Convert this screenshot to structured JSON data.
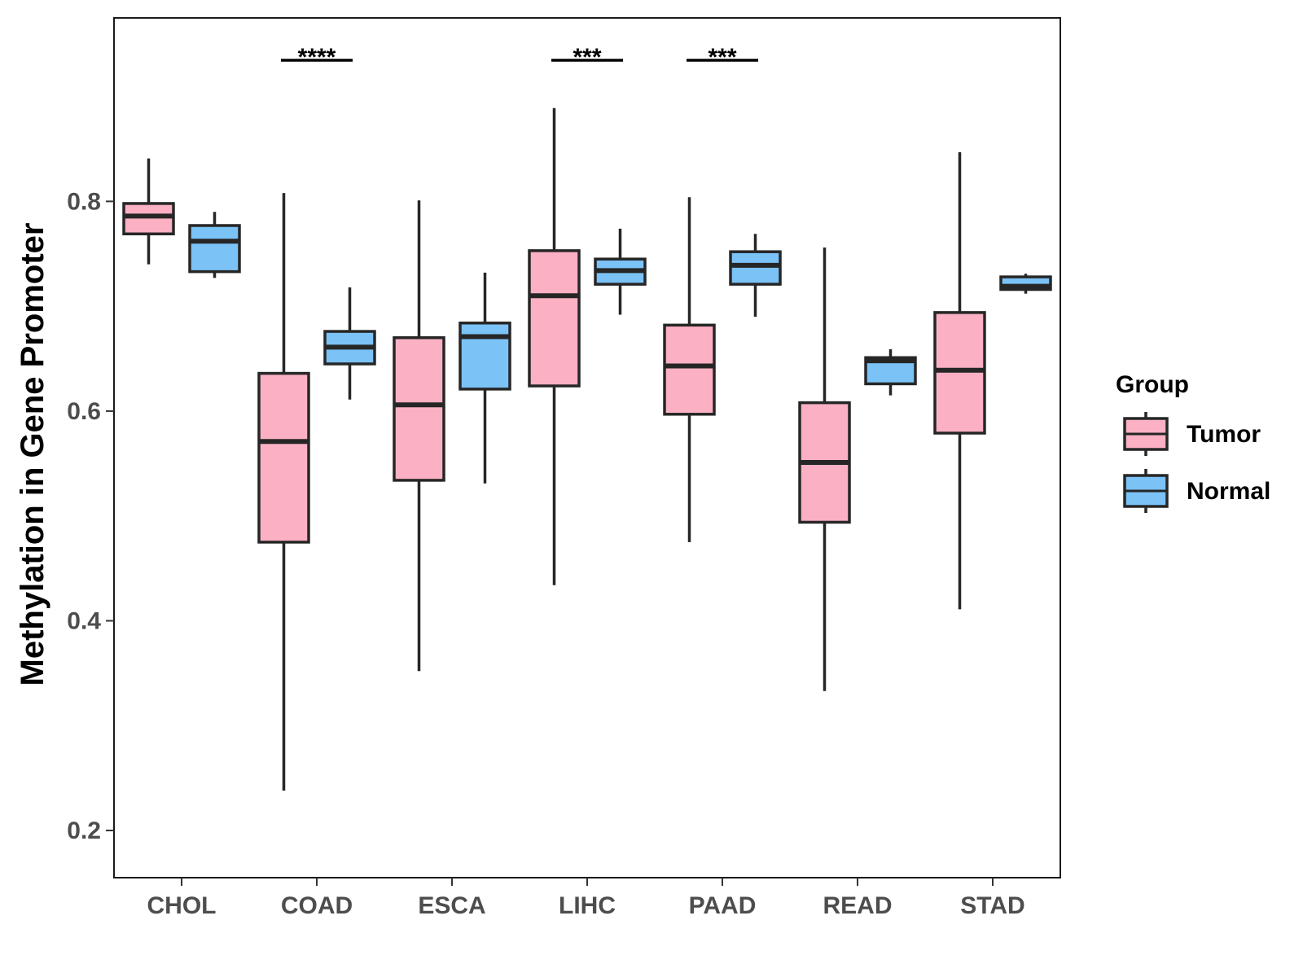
{
  "chart_data": {
    "type": "boxplot",
    "title": "",
    "xlabel": "",
    "ylabel": "Methylation in Gene Promoter",
    "ylim": [
      0.155,
      0.975
    ],
    "yticks": [
      0.2,
      0.4,
      0.6,
      0.8
    ],
    "ytick_labels": [
      "0.2",
      "0.4",
      "0.6",
      "0.8"
    ],
    "categories": [
      "CHOL",
      "COAD",
      "ESCA",
      "LIHC",
      "PAAD",
      "READ",
      "STAD"
    ],
    "legend": {
      "title": "Group",
      "position": "right",
      "entries": [
        {
          "name": "Tumor",
          "color": "#FBB1C3"
        },
        {
          "name": "Normal",
          "color": "#7BC2F7"
        }
      ]
    },
    "series": [
      {
        "name": "Tumor",
        "color": "#FBB1C3",
        "boxes": [
          {
            "category": "CHOL",
            "min": 0.74,
            "q1": 0.769,
            "median": 0.786,
            "q3": 0.798,
            "max": 0.841
          },
          {
            "category": "COAD",
            "min": 0.238,
            "q1": 0.475,
            "median": 0.571,
            "q3": 0.636,
            "max": 0.808
          },
          {
            "category": "ESCA",
            "min": 0.352,
            "q1": 0.534,
            "median": 0.606,
            "q3": 0.67,
            "max": 0.801
          },
          {
            "category": "LIHC",
            "min": 0.434,
            "q1": 0.624,
            "median": 0.71,
            "q3": 0.753,
            "max": 0.889
          },
          {
            "category": "PAAD",
            "min": 0.475,
            "q1": 0.597,
            "median": 0.643,
            "q3": 0.682,
            "max": 0.804
          },
          {
            "category": "READ",
            "min": 0.333,
            "q1": 0.494,
            "median": 0.551,
            "q3": 0.608,
            "max": 0.756
          },
          {
            "category": "STAD",
            "min": 0.411,
            "q1": 0.579,
            "median": 0.639,
            "q3": 0.694,
            "max": 0.847
          }
        ]
      },
      {
        "name": "Normal",
        "color": "#7BC2F7",
        "boxes": [
          {
            "category": "CHOL",
            "min": 0.727,
            "q1": 0.733,
            "median": 0.762,
            "q3": 0.777,
            "max": 0.79
          },
          {
            "category": "COAD",
            "min": 0.611,
            "q1": 0.645,
            "median": 0.661,
            "q3": 0.676,
            "max": 0.718
          },
          {
            "category": "ESCA",
            "min": 0.531,
            "q1": 0.621,
            "median": 0.671,
            "q3": 0.684,
            "max": 0.732
          },
          {
            "category": "LIHC",
            "min": 0.692,
            "q1": 0.721,
            "median": 0.734,
            "q3": 0.745,
            "max": 0.774
          },
          {
            "category": "PAAD",
            "min": 0.69,
            "q1": 0.721,
            "median": 0.739,
            "q3": 0.752,
            "max": 0.769
          },
          {
            "category": "READ",
            "min": 0.615,
            "q1": 0.626,
            "median": 0.648,
            "q3": 0.651,
            "max": 0.659
          },
          {
            "category": "STAD",
            "min": 0.712,
            "q1": 0.716,
            "median": 0.719,
            "q3": 0.728,
            "max": 0.731
          }
        ]
      }
    ],
    "significance": [
      {
        "category": "COAD",
        "label": "****"
      },
      {
        "category": "LIHC",
        "label": "***"
      },
      {
        "category": "PAAD",
        "label": "***"
      }
    ]
  }
}
